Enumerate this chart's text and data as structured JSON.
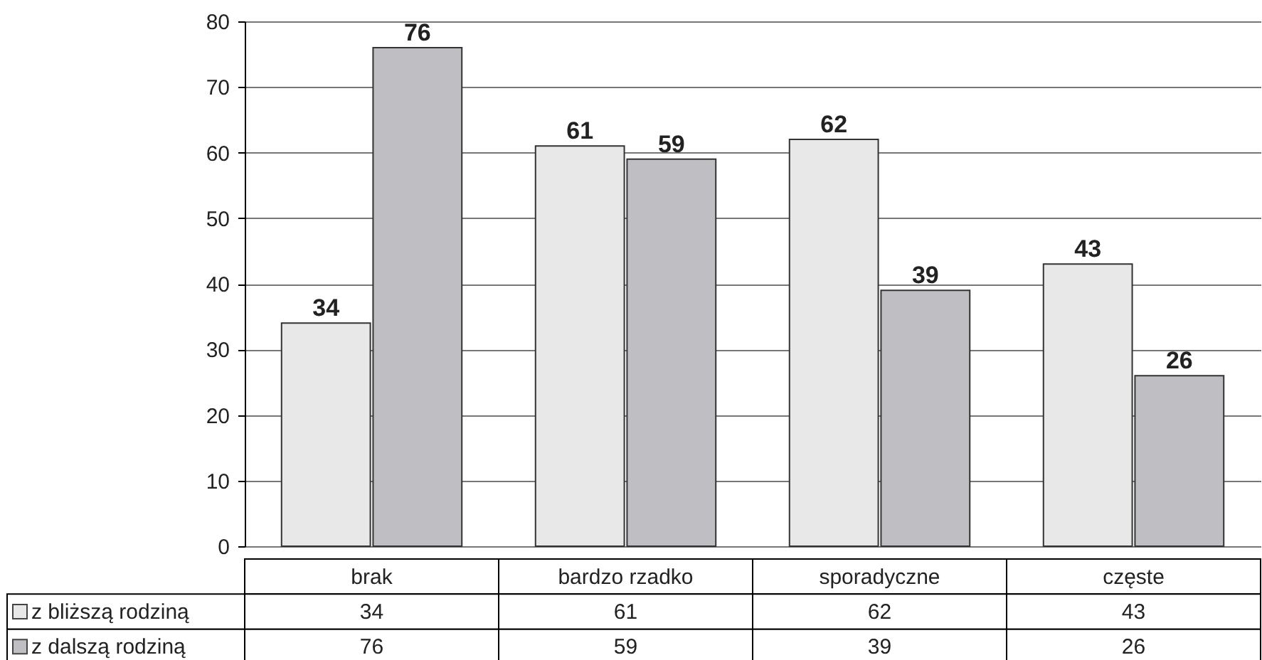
{
  "chart_data": {
    "type": "bar",
    "categories": [
      "brak",
      "bardzo rzadko",
      "sporadyczne",
      "częste"
    ],
    "series": [
      {
        "name": "z bliższą rodziną",
        "color": "#e8e8e8",
        "values": [
          34,
          61,
          62,
          43
        ]
      },
      {
        "name": "z dalszą rodziną",
        "color": "#bfbfc3",
        "values": [
          76,
          59,
          39,
          26
        ]
      }
    ],
    "annotations": [
      {
        "text": "34",
        "x": "brak",
        "y": 34
      },
      {
        "text": "76",
        "x": "brak",
        "y": 76
      },
      {
        "text": "61",
        "x": "bardzo rzadko",
        "y": 61
      },
      {
        "text": "59",
        "x": "bardzo rzadko",
        "y": 59
      },
      {
        "text": "62",
        "x": "sporadyczne",
        "y": 62
      },
      {
        "text": "39",
        "x": "sporadyczne",
        "y": 39
      },
      {
        "text": "43",
        "x": "częste",
        "y": 43
      },
      {
        "text": "26",
        "x": "częste",
        "y": 26
      }
    ],
    "ylim": [
      0,
      80
    ],
    "yticks": [
      0,
      10,
      20,
      30,
      40,
      50,
      60,
      70,
      80
    ],
    "grid": "y",
    "data_labels": true,
    "legend": "bottom left"
  }
}
